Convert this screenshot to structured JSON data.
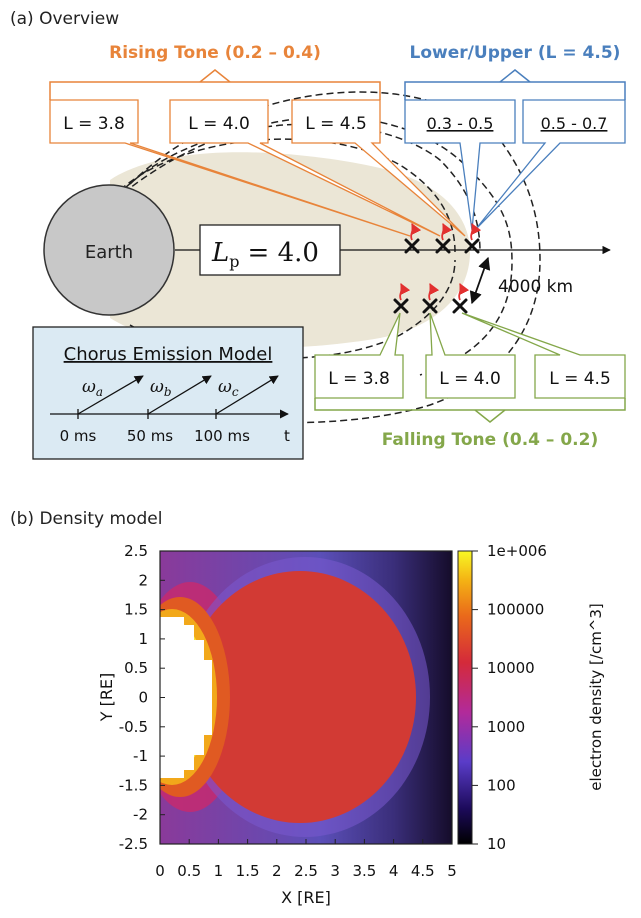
{
  "panel_a": {
    "title": "(a) Overview",
    "earth_label": "Earth",
    "lp_symbol": "L",
    "lp_subscript": "p",
    "lp_value": "= 4.0",
    "distance_label": "4000 km",
    "rising": {
      "title": "Rising Tone (0.2 – 0.4)",
      "boxes": [
        "L = 3.8",
        "L = 4.0",
        "L = 4.5"
      ],
      "color": "#e8843a"
    },
    "lower_upper": {
      "title": "Lower/Upper (L = 4.5)",
      "boxes": [
        "0.3 - 0.5",
        "0.5 - 0.7"
      ],
      "color": "#4a7fbd"
    },
    "falling": {
      "title": "Falling Tone (0.4 – 0.2)",
      "boxes": [
        "L = 3.8",
        "L = 4.0",
        "L = 4.5"
      ],
      "color": "#84a74a"
    },
    "chorus_model": {
      "title": "Chorus Emission Model",
      "omegas": [
        "ω",
        "ω",
        "ω"
      ],
      "omega_subs": [
        "a",
        "b",
        "c"
      ],
      "ticks": [
        "0 ms",
        "50 ms",
        "100 ms"
      ],
      "axis_label": "t"
    }
  },
  "panel_b": {
    "title": "(b) Density model",
    "chart_data": {
      "type": "heatmap",
      "xlabel": "X [RE]",
      "ylabel": "Y [RE]",
      "xlim": [
        0,
        5
      ],
      "ylim": [
        -2.5,
        2.5
      ],
      "x_ticks": [
        "0",
        "0.5",
        "1",
        "1.5",
        "2",
        "2.5",
        "3",
        "3.5",
        "4",
        "4.5",
        "5"
      ],
      "y_ticks": [
        "2.5",
        "2",
        "1.5",
        "1",
        "0.5",
        "0",
        "-0.5",
        "-1",
        "-1.5",
        "-2",
        "-2.5"
      ],
      "colorbar_label": "electron density [/cm^3]",
      "colorbar_ticks": [
        "1e+006",
        "100000",
        "10000",
        "1000",
        "100",
        "10"
      ],
      "colorbar_range": [
        10,
        1000000
      ],
      "colorbar_scale": "log"
    }
  }
}
